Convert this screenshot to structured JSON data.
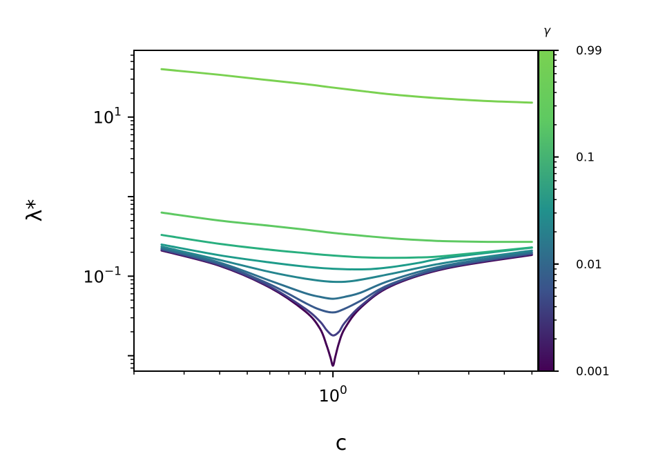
{
  "chart_data": {
    "type": "line",
    "xlabel": "c",
    "ylabel": "λ*",
    "xscale": "log",
    "yscale": "log",
    "xlim": [
      0.2,
      5.25
    ],
    "ylim": [
      0.0064,
      69
    ],
    "x_tick_labels": [
      {
        "value": 1,
        "base": "10",
        "exp": "0"
      }
    ],
    "y_tick_labels": [
      {
        "value": 10,
        "base": "10",
        "exp": "1"
      },
      {
        "value": 0.1,
        "base": "10",
        "exp": "−1"
      }
    ],
    "grid": false,
    "colorbar": {
      "label": "γ",
      "scale": "log",
      "range": [
        0.001,
        0.99
      ],
      "tick_labels": [
        {
          "value": 0.99,
          "label": "0.99"
        },
        {
          "value": 0.1,
          "label": "0.1"
        },
        {
          "value": 0.01,
          "label": "0.01"
        },
        {
          "value": 0.001,
          "label": "0.001"
        }
      ],
      "colormap_stops": [
        "#440154",
        "#3b528b",
        "#21918c",
        "#5ec962",
        "#7ad151"
      ]
    },
    "series": [
      {
        "gamma": 0.001,
        "color": "#440154",
        "x": [
          0.25,
          0.4,
          0.6,
          0.8,
          0.9,
          0.95,
          0.98,
          1.0,
          1.02,
          1.05,
          1.1,
          1.25,
          1.6,
          2.5,
          5.0
        ],
        "y": [
          0.21,
          0.135,
          0.072,
          0.036,
          0.022,
          0.0135,
          0.0095,
          0.0075,
          0.0098,
          0.0145,
          0.022,
          0.04,
          0.075,
          0.125,
          0.185
        ]
      },
      {
        "gamma": 0.003,
        "color": "#433e85",
        "x": [
          0.25,
          0.4,
          0.6,
          0.8,
          0.9,
          0.95,
          1.0,
          1.05,
          1.1,
          1.25,
          1.6,
          2.5,
          5.0
        ],
        "y": [
          0.215,
          0.138,
          0.074,
          0.039,
          0.027,
          0.021,
          0.018,
          0.02,
          0.026,
          0.042,
          0.077,
          0.128,
          0.19
        ]
      },
      {
        "gamma": 0.006,
        "color": "#38598c",
        "x": [
          0.25,
          0.4,
          0.6,
          0.8,
          0.9,
          1.0,
          1.1,
          1.25,
          1.6,
          2.5,
          5.0
        ],
        "y": [
          0.22,
          0.142,
          0.079,
          0.046,
          0.038,
          0.035,
          0.039,
          0.049,
          0.08,
          0.131,
          0.195
        ]
      },
      {
        "gamma": 0.01,
        "color": "#2d708e",
        "x": [
          0.25,
          0.4,
          0.6,
          0.8,
          0.9,
          1.0,
          1.1,
          1.25,
          1.6,
          2.5,
          5.0
        ],
        "y": [
          0.225,
          0.148,
          0.088,
          0.061,
          0.055,
          0.052,
          0.055,
          0.062,
          0.089,
          0.137,
          0.2
        ]
      },
      {
        "gamma": 0.02,
        "color": "#25858e",
        "x": [
          0.25,
          0.4,
          0.6,
          0.8,
          1.0,
          1.2,
          1.6,
          2.5,
          5.0
        ],
        "y": [
          0.235,
          0.16,
          0.113,
          0.093,
          0.085,
          0.088,
          0.107,
          0.148,
          0.21
        ]
      },
      {
        "gamma": 0.05,
        "color": "#1e9b8a",
        "x": [
          0.25,
          0.4,
          0.6,
          0.8,
          1.0,
          1.3,
          1.6,
          2.0,
          2.5,
          5.0
        ],
        "y": [
          0.25,
          0.183,
          0.149,
          0.132,
          0.124,
          0.122,
          0.13,
          0.147,
          0.17,
          0.228
        ]
      },
      {
        "gamma": 0.1,
        "color": "#29af7f",
        "x": [
          0.25,
          0.4,
          0.6,
          0.8,
          1.0,
          1.3,
          1.6,
          2.0,
          2.5,
          5.0
        ],
        "y": [
          0.33,
          0.255,
          0.215,
          0.195,
          0.182,
          0.172,
          0.17,
          0.172,
          0.18,
          0.23
        ]
      },
      {
        "gamma": 0.3,
        "color": "#5ec962",
        "x": [
          0.25,
          0.4,
          0.6,
          0.8,
          1.0,
          1.3,
          1.6,
          2.0,
          2.5,
          3.5,
          5.0
        ],
        "y": [
          0.63,
          0.5,
          0.43,
          0.385,
          0.35,
          0.32,
          0.3,
          0.285,
          0.275,
          0.27,
          0.27
        ]
      },
      {
        "gamma": 0.99,
        "color": "#7ad151",
        "x": [
          0.25,
          0.4,
          0.6,
          0.8,
          1.0,
          1.3,
          1.6,
          2.0,
          2.5,
          3.5,
          5.0
        ],
        "y": [
          40,
          34,
          29,
          26,
          23.5,
          21,
          19.3,
          18,
          17,
          15.9,
          15.2
        ]
      }
    ]
  }
}
